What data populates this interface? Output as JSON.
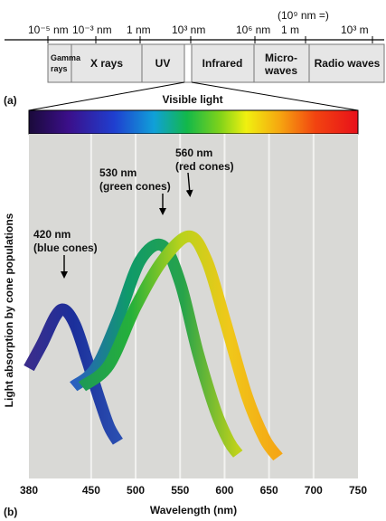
{
  "panel_a": {
    "label": "(a)",
    "scale": {
      "top_note": "(10⁹ nm =)",
      "ticks": [
        "10⁻⁵ nm",
        "10⁻³ nm",
        "1 nm",
        "10³ nm",
        "10⁶ nm",
        "1 m",
        "10³ m"
      ]
    },
    "bands": [
      {
        "name": "Gamma rays",
        "lines": [
          "Gamma",
          "rays"
        ]
      },
      {
        "name": "X rays",
        "lines": [
          "X rays"
        ]
      },
      {
        "name": "UV",
        "lines": [
          "UV"
        ]
      },
      {
        "name": "Visible",
        "lines": []
      },
      {
        "name": "Infrared",
        "lines": [
          "Infrared"
        ]
      },
      {
        "name": "Microwaves",
        "lines": [
          "Micro-",
          "waves"
        ]
      },
      {
        "name": "Radio waves",
        "lines": [
          "Radio waves"
        ]
      }
    ],
    "visible_label": "Visible light"
  },
  "panel_b": {
    "label": "(b)"
  },
  "colors": {
    "plot_bg": "#d9d9d6",
    "band_bg": "#e6e6e6",
    "blue_curve": [
      "#3a2d8c",
      "#1b2f9b",
      "#2a4eb0"
    ],
    "green_curve": [
      "#2a5fc1",
      "#0f9a6a",
      "#27a34a",
      "#c0d21a"
    ],
    "red_curve": [
      "#1e9a55",
      "#25b03a",
      "#b8d21c",
      "#f0c81a",
      "#f5a615"
    ]
  },
  "chart_data": {
    "type": "line",
    "title": "",
    "xlabel": "Wavelength (nm)",
    "ylabel": "Light absorption by cone populations",
    "xlim": [
      380,
      750
    ],
    "ylim": [
      0,
      1
    ],
    "x_ticks": [
      380,
      450,
      500,
      550,
      600,
      650,
      700,
      750
    ],
    "grid": true,
    "series": [
      {
        "name": "blue cones",
        "peak_nm": 420,
        "points": [
          [
            380,
            0.36
          ],
          [
            395,
            0.44
          ],
          [
            410,
            0.53
          ],
          [
            420,
            0.55
          ],
          [
            432,
            0.5
          ],
          [
            445,
            0.39
          ],
          [
            458,
            0.27
          ],
          [
            470,
            0.17
          ],
          [
            480,
            0.12
          ]
        ]
      },
      {
        "name": "green cones",
        "peak_nm": 530,
        "points": [
          [
            430,
            0.3
          ],
          [
            455,
            0.36
          ],
          [
            480,
            0.52
          ],
          [
            505,
            0.71
          ],
          [
            530,
            0.76
          ],
          [
            550,
            0.64
          ],
          [
            570,
            0.41
          ],
          [
            590,
            0.22
          ],
          [
            605,
            0.12
          ],
          [
            615,
            0.08
          ]
        ]
      },
      {
        "name": "red cones",
        "peak_nm": 560,
        "points": [
          [
            440,
            0.3
          ],
          [
            470,
            0.37
          ],
          [
            500,
            0.56
          ],
          [
            530,
            0.71
          ],
          [
            560,
            0.79
          ],
          [
            580,
            0.71
          ],
          [
            600,
            0.52
          ],
          [
            625,
            0.27
          ],
          [
            645,
            0.13
          ],
          [
            660,
            0.07
          ]
        ]
      }
    ],
    "annotations": [
      {
        "series": "blue cones",
        "lines": [
          "420 nm",
          "(blue cones)"
        ]
      },
      {
        "series": "green cones",
        "lines": [
          "530 nm",
          "(green cones)"
        ]
      },
      {
        "series": "red cones",
        "lines": [
          "560 nm",
          "(red cones)"
        ]
      }
    ]
  }
}
